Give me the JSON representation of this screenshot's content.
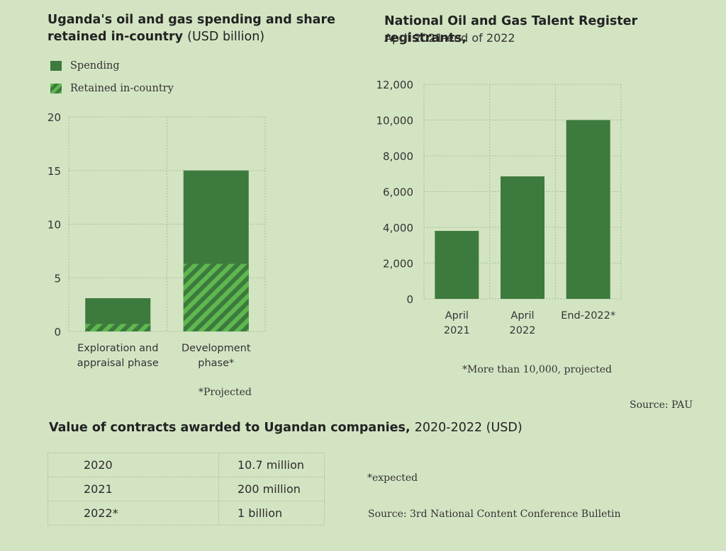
{
  "chart_data": [
    {
      "type": "bar",
      "title": "Uganda's oil and gas spending and share retained in-country",
      "title_unit": "(USD billion)",
      "categories": [
        "Exploration and appraisal phase",
        "Development phase*"
      ],
      "category_lines": [
        [
          "Exploration and",
          "appraisal phase"
        ],
        [
          "Development",
          "phase*"
        ]
      ],
      "series": [
        {
          "name": "Spending",
          "values": [
            3.1,
            15.0
          ],
          "color": "#3d7a3d"
        },
        {
          "name": "Retained in-country",
          "values": [
            0.7,
            6.3
          ],
          "color": "#3e9a3e",
          "pattern": "hatched"
        }
      ],
      "ylim": [
        0,
        20
      ],
      "yticks": [
        0,
        5,
        10,
        15,
        20
      ],
      "grid": true,
      "legend": "top-left",
      "footnote": "*Projected"
    },
    {
      "type": "bar",
      "title": "National Oil and Gas Talent Register registrants,",
      "subtitle": "April 2021-end of 2022",
      "categories": [
        "April 2021",
        "April 2022",
        "End-2022*"
      ],
      "category_lines": [
        [
          "April",
          "2021"
        ],
        [
          "April",
          "2022"
        ],
        [
          "End-2022*"
        ]
      ],
      "series": [
        {
          "values": [
            3800,
            6850,
            10000
          ],
          "color": "#3d7a3d"
        }
      ],
      "ylim": [
        0,
        12000
      ],
      "yticks": [
        0,
        2000,
        4000,
        6000,
        8000,
        10000,
        12000
      ],
      "ytick_labels": [
        "0",
        "2,000",
        "4,000",
        "6,000",
        "8,000",
        "10,000",
        "12,000"
      ],
      "grid": true,
      "footnote": "*More than 10,000, projected",
      "source": "Source: PAU"
    },
    {
      "type": "table",
      "title": "Value of contracts awarded to Ugandan companies,",
      "title_unit": "2020-2022 (USD)",
      "rows": [
        {
          "year": "2020",
          "value": "10.7 million"
        },
        {
          "year": "2021",
          "value": "200 million"
        },
        {
          "year": "2022*",
          "value": "1 billion"
        }
      ],
      "footnote": "*expected",
      "source": "Source: 3rd National Content Conference Bulletin"
    }
  ]
}
